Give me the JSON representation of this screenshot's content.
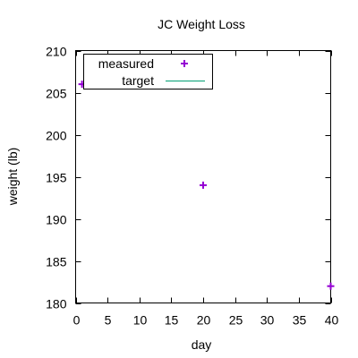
{
  "chart_data": {
    "type": "scatter",
    "title": "JC Weight Loss",
    "xlabel": "day",
    "ylabel": "weight (lb)",
    "xlim": [
      0,
      40
    ],
    "ylim": [
      180,
      210
    ],
    "xticks": [
      0,
      5,
      10,
      15,
      20,
      25,
      30,
      35,
      40
    ],
    "yticks": [
      180,
      185,
      190,
      195,
      200,
      205,
      210
    ],
    "grid": false,
    "legend_position": "top-left",
    "series": [
      {
        "name": "measured",
        "style": "points",
        "marker": "plus",
        "color": "#9400d3",
        "x": [
          1,
          20,
          40
        ],
        "y": [
          206,
          194,
          182
        ]
      },
      {
        "name": "target",
        "style": "line",
        "color": "#009e73",
        "x": [],
        "y": []
      }
    ]
  }
}
